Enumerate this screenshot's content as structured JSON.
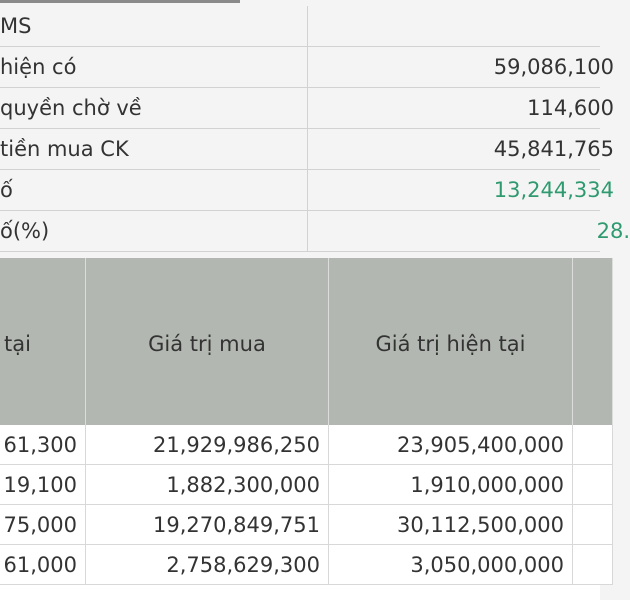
{
  "summary": {
    "rows": [
      {
        "label": "MS",
        "value": ""
      },
      {
        "label": " hiện có",
        "value": "59,086,100"
      },
      {
        "label": " quyền chờ về",
        "value": "114,600"
      },
      {
        "label": "tiền mua CK",
        "value": "45,841,765"
      },
      {
        "label": "ố",
        "value": "13,244,334",
        "positive": true
      },
      {
        "label": "ố(%)",
        "value": "28.",
        "positive": true
      }
    ],
    "positive_color": "#2f9a6f"
  },
  "holdings": {
    "columns": [
      "tại",
      "Giá trị mua",
      "Giá trị hiện tại",
      ""
    ],
    "rows": [
      [
        "61,300",
        "21,929,986,250",
        "23,905,400,000",
        ""
      ],
      [
        "19,100",
        "1,882,300,000",
        "1,910,000,000",
        ""
      ],
      [
        "75,000",
        "19,270,849,751",
        "30,112,500,000",
        ""
      ],
      [
        "61,000",
        "2,758,629,300",
        "3,050,000,000",
        ""
      ]
    ],
    "header_color": "#b3b7b1"
  }
}
